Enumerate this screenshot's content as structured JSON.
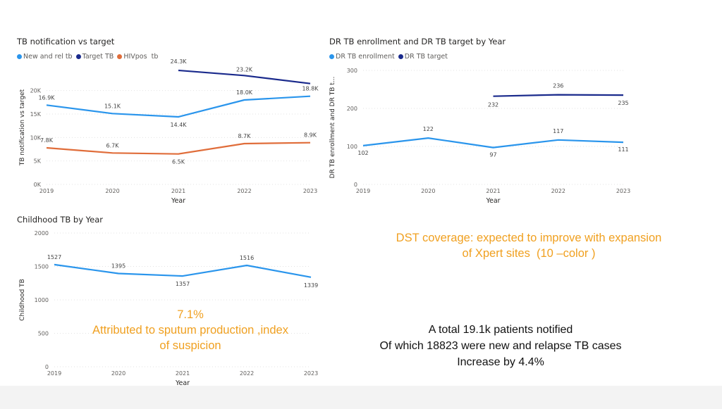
{
  "colors": {
    "new_rel": "#2a95ec",
    "target": "#1a2a8c",
    "hivpos": "#e06d3a",
    "annotation": "#f0a020"
  },
  "chart_data": [
    {
      "id": "tb_notification",
      "type": "line",
      "title": "TB notification vs target",
      "xlabel": "Year",
      "ylabel": "TB notification vs target",
      "categories": [
        "2019",
        "2020",
        "2021",
        "2022",
        "2023"
      ],
      "yticks": [
        "0K",
        "5K",
        "10K",
        "15K",
        "20K"
      ],
      "ylim": [
        0,
        24300
      ],
      "series": [
        {
          "name": "New and rel tb",
          "values": [
            16900,
            15100,
            14400,
            18000,
            18800
          ],
          "labels": [
            "16.9K",
            "15.1K",
            "14.4K",
            "18.0K",
            "18.8K"
          ]
        },
        {
          "name": "Target TB",
          "values": [
            null,
            null,
            24300,
            23200,
            21500
          ],
          "labels": [
            "",
            "",
            "24.3K",
            "23.2K",
            ""
          ]
        },
        {
          "name": "HIVpos  tb",
          "values": [
            7800,
            6700,
            6500,
            8700,
            8900
          ],
          "labels": [
            "7.8K",
            "6.7K",
            "6.5K",
            "8.7K",
            "8.9K"
          ]
        }
      ]
    },
    {
      "id": "dr_tb",
      "type": "line",
      "title": "DR TB enrollment and DR TB target by Year",
      "xlabel": "Year",
      "ylabel": "DR TB enrollment and DR TB t...",
      "categories": [
        "2019",
        "2020",
        "2021",
        "2022",
        "2023"
      ],
      "yticks": [
        "0",
        "100",
        "200",
        "300"
      ],
      "ylim": [
        0,
        300
      ],
      "series": [
        {
          "name": "DR TB enrollment",
          "values": [
            102,
            122,
            97,
            117,
            111
          ],
          "labels": [
            "102",
            "122",
            "97",
            "117",
            "111"
          ]
        },
        {
          "name": "DR TB target",
          "values": [
            null,
            null,
            232,
            236,
            235
          ],
          "labels": [
            "",
            "",
            "232",
            "236",
            "235"
          ]
        }
      ]
    },
    {
      "id": "childhood_tb",
      "type": "line",
      "title": "Childhood TB by Year",
      "xlabel": "Year",
      "ylabel": "Childhood TB",
      "categories": [
        "2019",
        "2020",
        "2021",
        "2022",
        "2023"
      ],
      "yticks": [
        "0",
        "500",
        "1000",
        "1500",
        "2000"
      ],
      "ylim": [
        0,
        2000
      ],
      "series": [
        {
          "name": "Childhood TB",
          "values": [
            1527,
            1395,
            1357,
            1516,
            1339
          ],
          "labels": [
            "1527",
            "1395",
            "1357",
            "1516",
            "1339"
          ]
        }
      ]
    }
  ],
  "annotations": {
    "dst_lines": [
      "DST coverage: expected to improve with expansion",
      "of Xpert sites  (10 –color )"
    ],
    "pct": "7.1%",
    "sputum_lines": [
      "Attributed to sputum production ,index",
      "of suspicion"
    ],
    "summary_lines": [
      "A total 19.1k patients notified",
      "Of which 18823 were new and relapse TB cases",
      "Increase by 4.4%"
    ]
  }
}
